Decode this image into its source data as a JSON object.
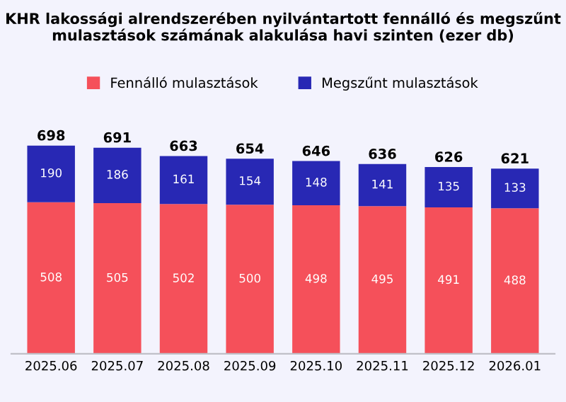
{
  "chart_data": {
    "type": "bar",
    "title": "KHR lakossági alrendszerében nyilvántartott fennálló és megszűnt mulasztások számának alakulása havi szinten (ezer db)",
    "categories": [
      "2025.06",
      "2025.07",
      "2025.08",
      "2025.09",
      "2025.10",
      "2025.11",
      "2025.12",
      "2026.01"
    ],
    "stacked": true,
    "data_labels": true,
    "legend": "top",
    "series": [
      {
        "name": "Fennálló mulasztások",
        "color": "#f5505a",
        "values": [
          508,
          505,
          502,
          500,
          498,
          495,
          491,
          488
        ]
      },
      {
        "name": "Megszűnt mulasztások",
        "color": "#2828b4",
        "values": [
          190,
          186,
          161,
          154,
          148,
          141,
          135,
          133
        ]
      }
    ],
    "totals": [
      "698",
      "691",
      "663",
      "654",
      "646",
      "636",
      "626",
      "621"
    ]
  }
}
